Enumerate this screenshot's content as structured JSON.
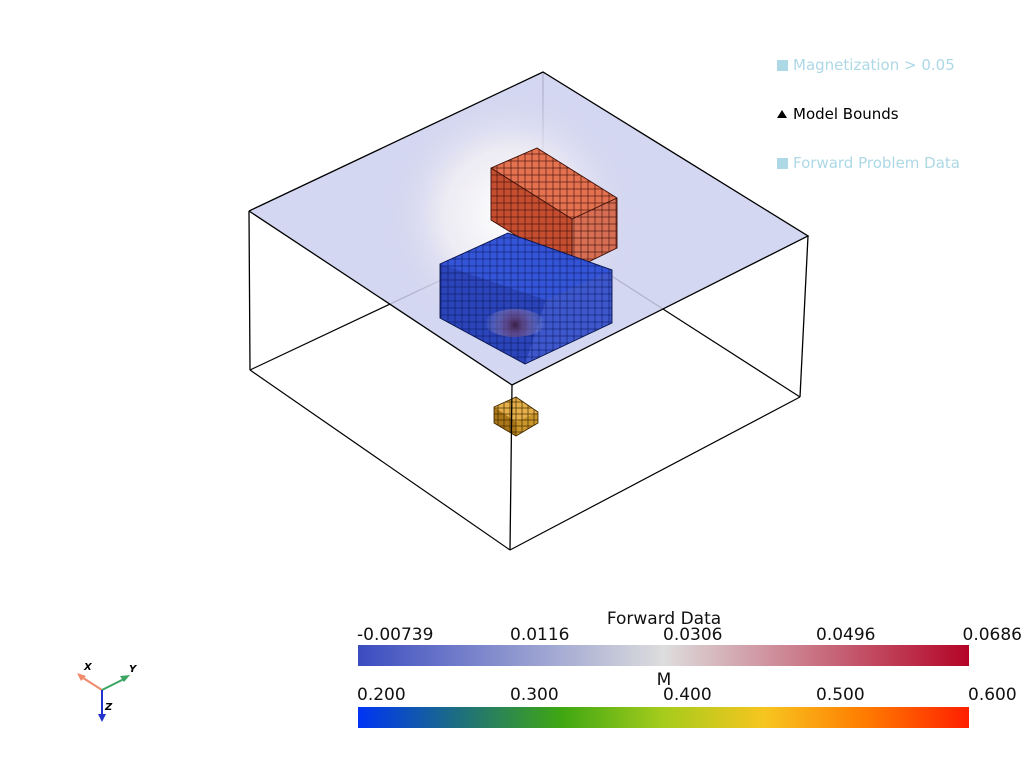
{
  "legend": {
    "entries": [
      {
        "label": "Magnetization > 0.05",
        "color": "#add8e6",
        "symbol": "square"
      },
      {
        "label": "Model Bounds",
        "color": "#000000",
        "symbol": "triangle"
      },
      {
        "label": "Forward Problem Data",
        "color": "#add8e6",
        "symbol": "square"
      }
    ]
  },
  "colorbars": {
    "forward": {
      "title": "Forward Data",
      "ticks": [
        "-0.00739",
        "0.0116",
        "0.0306",
        "0.0496",
        "0.0686"
      ],
      "colormap": "coolwarm",
      "colors": [
        "#3b4cc0",
        "#dddddd",
        "#b40426"
      ]
    },
    "magnetization": {
      "title": "M",
      "ticks": [
        "0.200",
        "0.300",
        "0.400",
        "0.500",
        "0.600"
      ],
      "colormap": "turbo",
      "colors": [
        "#0034f5",
        "#1e6f7e",
        "#3fa712",
        "#a6cc1c",
        "#f7c51f",
        "#ff7a00",
        "#ff1f00"
      ]
    }
  },
  "orientation_axes": {
    "x": {
      "label": "X",
      "color": "#f08a6b"
    },
    "y": {
      "label": "Y",
      "color": "#3aa561"
    },
    "z": {
      "label": "Z",
      "color": "#2233cc"
    }
  }
}
